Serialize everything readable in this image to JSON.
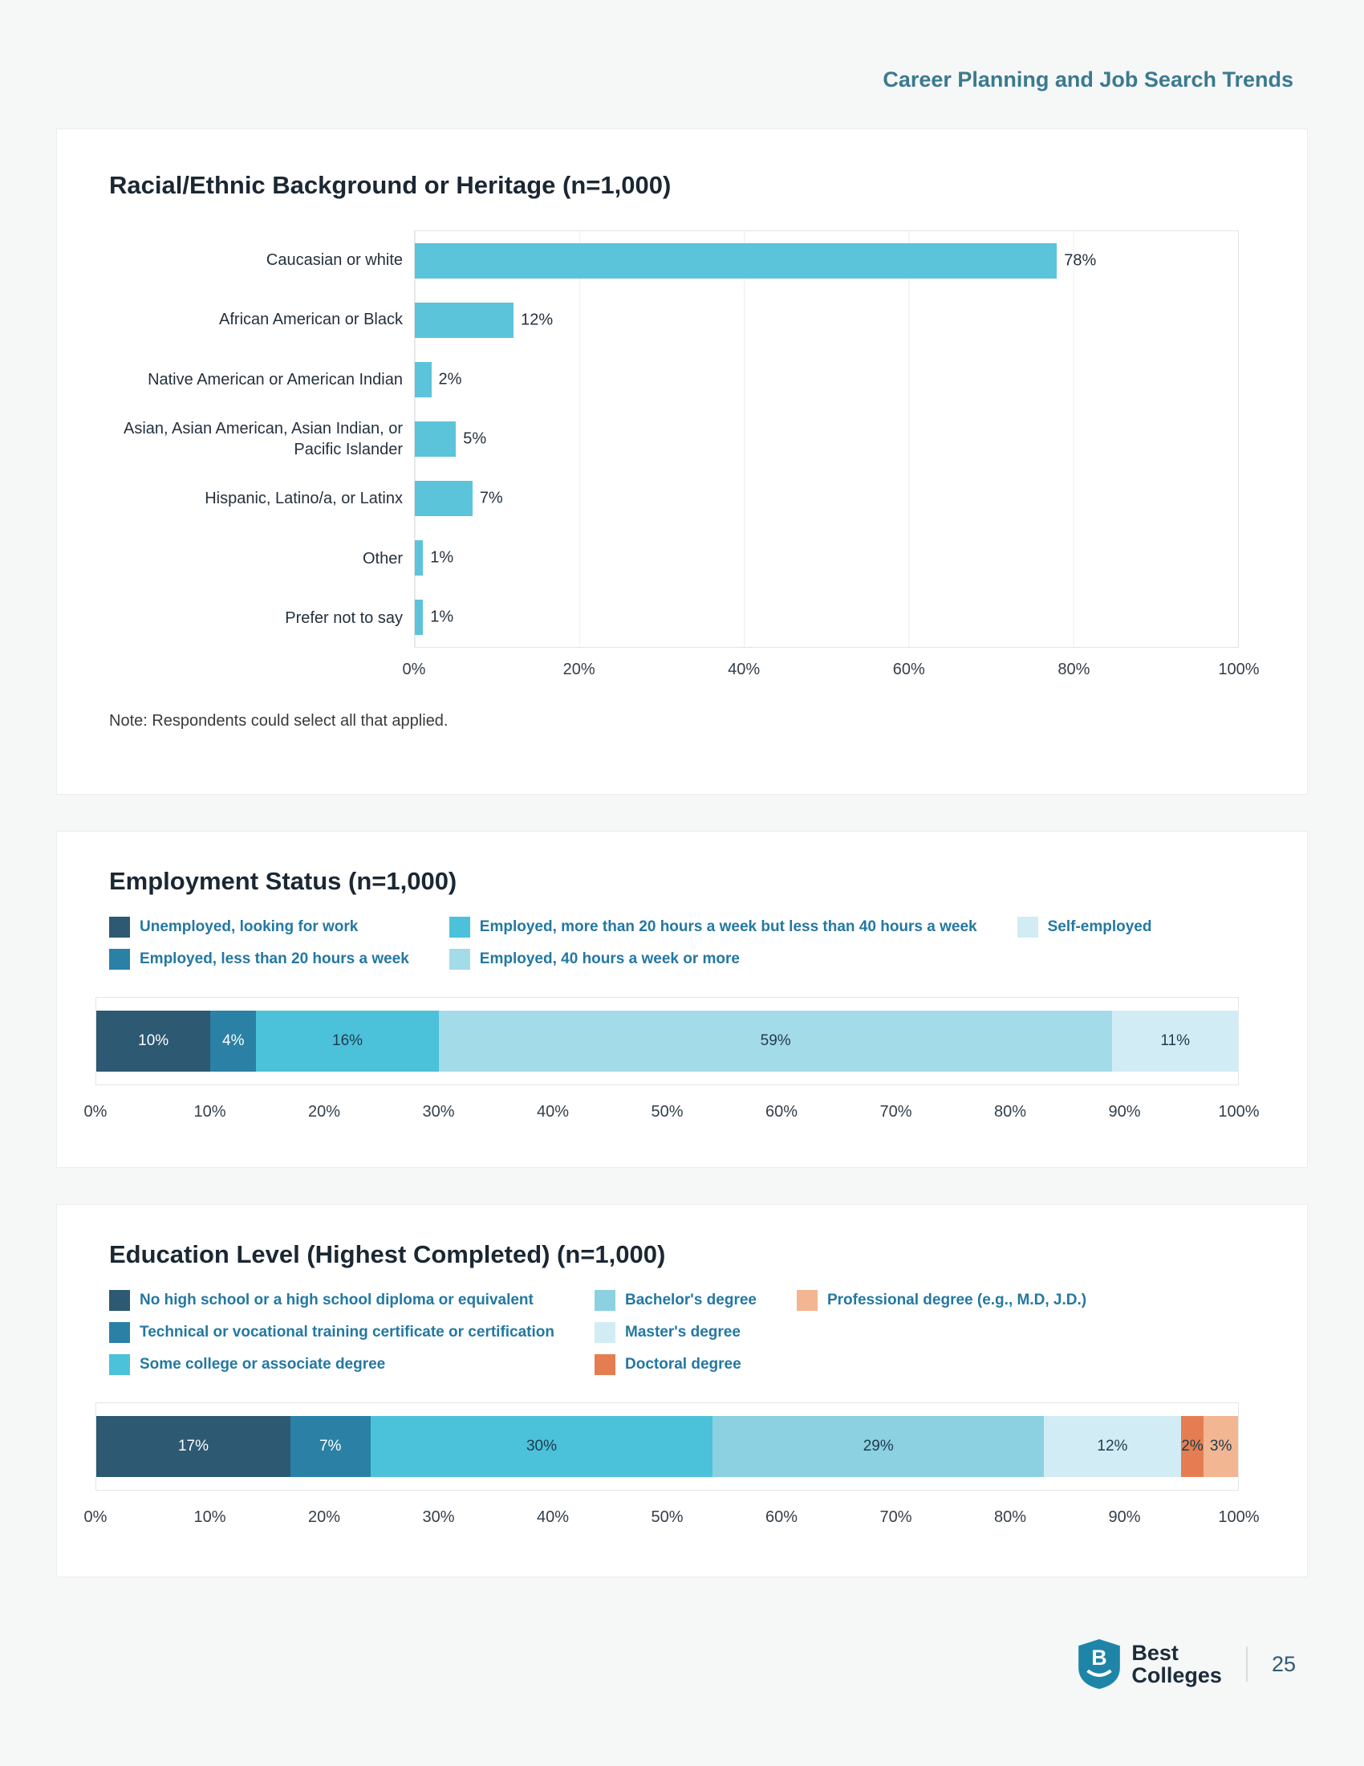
{
  "page": {
    "header_title": "Career Planning and Job Search Trends",
    "page_number": "25",
    "logo": {
      "line1": "Best",
      "line2": "Colleges"
    }
  },
  "chart_data": [
    {
      "type": "bar",
      "orientation": "horizontal",
      "title": "Racial/Ethnic Background or Heritage (n=1,000)",
      "categories": [
        "Caucasian or white",
        "African American or Black",
        "Native American or American Indian",
        "Asian, Asian American, Asian Indian, or Pacific Islander",
        "Hispanic, Latino/a, or Latinx",
        "Other",
        "Prefer not to say"
      ],
      "values": [
        78,
        12,
        2,
        5,
        7,
        1,
        1
      ],
      "value_labels": [
        "78%",
        "12%",
        "2%",
        "5%",
        "7%",
        "1%",
        "1%"
      ],
      "bar_color": "#5bc4da",
      "xlim": [
        0,
        100
      ],
      "x_ticks": [
        "0%",
        "20%",
        "40%",
        "60%",
        "80%",
        "100%"
      ],
      "grid": true,
      "legend_position": "none",
      "note": "Note: Respondents could select all that applied."
    },
    {
      "type": "stacked-bar",
      "title": "Employment Status (n=1,000)",
      "xlim": [
        0,
        100
      ],
      "x_ticks": [
        "0%",
        "10%",
        "20%",
        "30%",
        "40%",
        "50%",
        "60%",
        "70%",
        "80%",
        "90%",
        "100%"
      ],
      "legend_position": "top",
      "segments": [
        {
          "label": "Unemployed, looking for work",
          "value": 10,
          "display": "10%",
          "color": "#2d5972",
          "text_color": "#ffffff"
        },
        {
          "label": "Employed, less than 20 hours a week",
          "value": 4,
          "display": "4%",
          "color": "#2b80a5",
          "text_color": "#ffffff"
        },
        {
          "label": "Employed, more than 20 hours a week but less than 40 hours a week",
          "value": 16,
          "display": "16%",
          "color": "#4cc1da",
          "text_color": "#1f3b4d"
        },
        {
          "label": "Employed, 40 hours a week or more",
          "value": 59,
          "display": "59%",
          "color": "#a3dbe8",
          "text_color": "#1f3b4d"
        },
        {
          "label": "Self-employed",
          "value": 11,
          "display": "11%",
          "color": "#d2ecf5",
          "text_color": "#1f3b4d"
        }
      ]
    },
    {
      "type": "stacked-bar",
      "title": "Education Level (Highest Completed) (n=1,000)",
      "xlim": [
        0,
        100
      ],
      "x_ticks": [
        "0%",
        "10%",
        "20%",
        "30%",
        "40%",
        "50%",
        "60%",
        "70%",
        "80%",
        "90%",
        "100%"
      ],
      "legend_position": "top",
      "segments": [
        {
          "label": "No high school or a high school diploma or equivalent",
          "value": 17,
          "display": "17%",
          "color": "#2d5972",
          "text_color": "#ffffff"
        },
        {
          "label": "Technical or vocational training certificate or certification",
          "value": 7,
          "display": "7%",
          "color": "#2b80a5",
          "text_color": "#ffffff"
        },
        {
          "label": "Some college or associate degree",
          "value": 30,
          "display": "30%",
          "color": "#4cc1da",
          "text_color": "#1f3b4d"
        },
        {
          "label": "Bachelor's degree",
          "value": 29,
          "display": "29%",
          "color": "#8bd1e2",
          "text_color": "#1f3b4d"
        },
        {
          "label": "Master's degree",
          "value": 12,
          "display": "12%",
          "color": "#d2ecf5",
          "text_color": "#1f3b4d"
        },
        {
          "label": "Doctoral degree",
          "value": 2,
          "display": "2%",
          "color": "#e47e52",
          "text_color": "#1f3b4d"
        },
        {
          "label": "Professional degree (e.g., M.D, J.D.)",
          "value": 3,
          "display": "3%",
          "color": "#f2b693",
          "text_color": "#1f3b4d"
        }
      ]
    }
  ]
}
